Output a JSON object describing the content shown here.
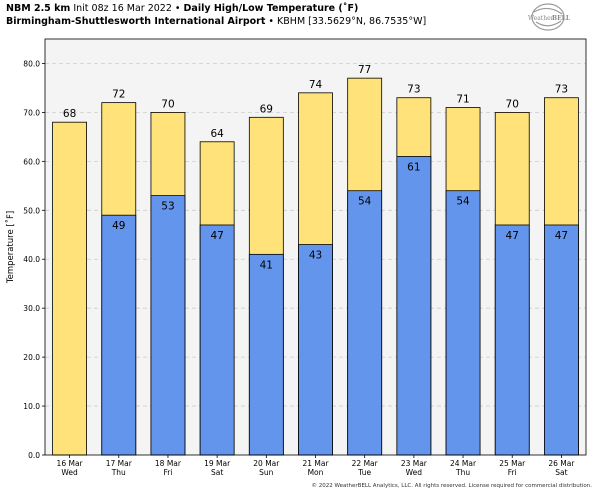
{
  "header": {
    "model": "NBM 2.5 km",
    "init": "Init 08z 16 Mar 2022",
    "bullet": "•",
    "product": "Daily High/Low Temperature (˚F)",
    "station_name": "Birmingham-Shuttlesworth International Airport",
    "station_info": "KBHM [33.5629°N, 86.7535°W]"
  },
  "logo": {
    "text_top": "Weather",
    "text_bottom": "BELL"
  },
  "copyright": "© 2022 WeatherBELL Analytics, LLC. All rights reserved. License required for commercial distribution.",
  "colors": {
    "high": "#FFE27A",
    "low": "#6495ED",
    "panel": "#f4f4f4",
    "grid": "#cccccc"
  },
  "chart_data": {
    "type": "bar",
    "title": "Daily High/Low Temperature (˚F)",
    "ylabel": "Temperature [˚F]",
    "xlabel": "",
    "ylim": [
      0,
      85
    ],
    "yticks": [
      0,
      10,
      20,
      30,
      40,
      50,
      60,
      70,
      80
    ],
    "ytick_labels": [
      "0.0",
      "10.0",
      "20.0",
      "30.0",
      "40.0",
      "50.0",
      "60.0",
      "70.0",
      "80.0"
    ],
    "grid": true,
    "categories": [
      {
        "date": "16 Mar",
        "day": "Wed"
      },
      {
        "date": "17 Mar",
        "day": "Thu"
      },
      {
        "date": "18 Mar",
        "day": "Fri"
      },
      {
        "date": "19 Mar",
        "day": "Sat"
      },
      {
        "date": "20 Mar",
        "day": "Sun"
      },
      {
        "date": "21 Mar",
        "day": "Mon"
      },
      {
        "date": "22 Mar",
        "day": "Tue"
      },
      {
        "date": "23 Mar",
        "day": "Wed"
      },
      {
        "date": "24 Mar",
        "day": "Thu"
      },
      {
        "date": "25 Mar",
        "day": "Fri"
      },
      {
        "date": "26 Mar",
        "day": "Sat"
      }
    ],
    "series": [
      {
        "name": "High",
        "values": [
          68,
          72,
          70,
          64,
          69,
          74,
          77,
          73,
          71,
          70,
          73
        ]
      },
      {
        "name": "Low",
        "values": [
          null,
          49,
          53,
          47,
          41,
          43,
          54,
          61,
          54,
          47,
          47
        ]
      }
    ]
  }
}
